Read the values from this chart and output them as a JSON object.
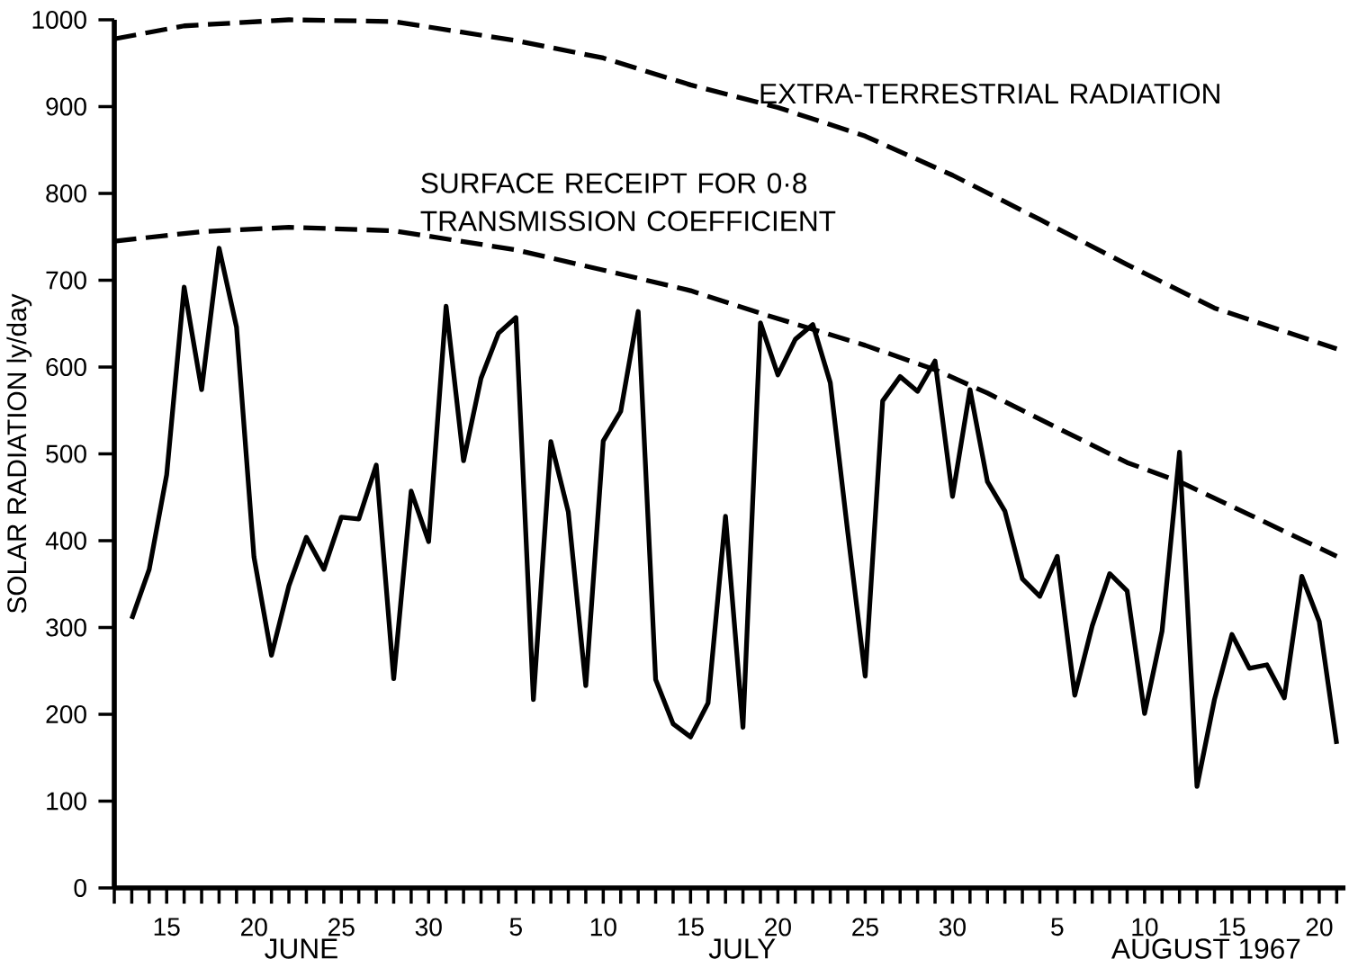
{
  "chart_data": {
    "type": "line",
    "ylabel": "SOLAR RADIATION ly/day",
    "annotations": [
      "JUNE",
      "JULY",
      "AUGUST 1967"
    ],
    "xlim": [
      "1967-06-12",
      "1967-08-21T12:00"
    ],
    "ylim": [
      0,
      1000
    ],
    "yticks": [
      0,
      100,
      200,
      300,
      400,
      500,
      600,
      700,
      800,
      900,
      1000
    ],
    "xticks": [
      {
        "value": "1967-06-15",
        "label": "15"
      },
      {
        "value": "1967-06-20",
        "label": "20"
      },
      {
        "value": "1967-06-25",
        "label": "25"
      },
      {
        "value": "1967-06-30",
        "label": "30"
      },
      {
        "value": "1967-07-05",
        "label": "5"
      },
      {
        "value": "1967-07-10",
        "label": "10"
      },
      {
        "value": "1967-07-15",
        "label": "15"
      },
      {
        "value": "1967-07-20",
        "label": "20"
      },
      {
        "value": "1967-07-25",
        "label": "25"
      },
      {
        "value": "1967-07-30",
        "label": "30"
      },
      {
        "value": "1967-08-05",
        "label": "5"
      },
      {
        "value": "1967-08-10",
        "label": "10"
      },
      {
        "value": "1967-08-15",
        "label": "15"
      },
      {
        "value": "1967-08-20",
        "label": "20"
      }
    ],
    "legend": false,
    "grid": false,
    "marker": "none",
    "series": [
      {
        "color": "#000000",
        "line_style": "solid",
        "x": [
          "1967-06-13",
          "1967-06-14",
          "1967-06-15",
          "1967-06-16",
          "1967-06-17",
          "1967-06-18",
          "1967-06-19",
          "1967-06-20",
          "1967-06-21",
          "1967-06-22",
          "1967-06-23",
          "1967-06-24",
          "1967-06-25",
          "1967-06-26",
          "1967-06-27",
          "1967-06-28",
          "1967-06-29",
          "1967-06-30",
          "1967-07-01",
          "1967-07-02",
          "1967-07-03",
          "1967-07-04",
          "1967-07-05",
          "1967-07-06",
          "1967-07-07",
          "1967-07-08",
          "1967-07-09",
          "1967-07-10",
          "1967-07-11",
          "1967-07-12",
          "1967-07-13",
          "1967-07-14",
          "1967-07-15",
          "1967-07-16",
          "1967-07-17",
          "1967-07-18",
          "1967-07-19",
          "1967-07-20",
          "1967-07-21",
          "1967-07-22",
          "1967-07-23",
          "1967-07-24",
          "1967-07-25",
          "1967-07-26",
          "1967-07-27",
          "1967-07-28",
          "1967-07-29",
          "1967-07-30",
          "1967-07-31",
          "1967-08-01",
          "1967-08-02",
          "1967-08-03",
          "1967-08-04",
          "1967-08-05",
          "1967-08-06",
          "1967-08-07",
          "1967-08-08",
          "1967-08-09",
          "1967-08-10",
          "1967-08-11",
          "1967-08-12",
          "1967-08-13",
          "1967-08-14",
          "1967-08-15",
          "1967-08-16",
          "1967-08-17",
          "1967-08-18",
          "1967-08-19",
          "1967-08-20",
          "1967-08-21"
        ],
        "values": [
          310,
          367,
          476,
          692,
          574,
          737,
          646,
          381,
          268,
          348,
          404,
          367,
          427,
          425,
          487,
          241,
          457,
          399,
          670,
          492,
          587,
          639,
          657,
          217,
          514,
          433,
          233,
          515,
          549,
          664,
          240,
          189,
          174,
          213,
          428,
          185,
          651,
          591,
          632,
          649,
          582,
          410,
          244,
          561,
          589,
          572,
          607,
          451,
          574,
          468,
          434,
          356,
          336,
          382,
          222,
          302,
          362,
          342,
          201,
          296,
          502,
          117,
          217,
          292,
          253,
          257,
          219,
          359,
          307,
          166
        ]
      },
      {
        "name": "EXTRA-TERRESTRIAL RADIATION",
        "color": "#000000",
        "line_style": "dashed",
        "x": [
          "1967-06-12",
          "1967-06-16",
          "1967-06-22",
          "1967-06-28",
          "1967-07-05",
          "1967-07-10",
          "1967-07-15",
          "1967-07-20",
          "1967-07-25",
          "1967-07-30",
          "1967-08-04",
          "1967-08-09",
          "1967-08-14",
          "1967-08-21"
        ],
        "values": [
          978,
          993,
          1000,
          998,
          976,
          956,
          925,
          899,
          866,
          821,
          770,
          718,
          668,
          621
        ]
      },
      {
        "name": "SURFACE RECEIPT FOR 0·8 TRANSMISSION COEFFICIENT",
        "color": "#000000",
        "line_style": "dashed",
        "x": [
          "1967-06-12",
          "1967-06-17",
          "1967-06-22",
          "1967-06-28",
          "1967-07-05",
          "1967-07-11",
          "1967-07-15",
          "1967-07-19",
          "1967-07-25",
          "1967-07-29",
          "1967-08-01",
          "1967-08-05",
          "1967-08-09",
          "1967-08-12",
          "1967-08-16",
          "1967-08-21"
        ],
        "values": [
          745,
          756,
          761,
          757,
          735,
          707,
          688,
          662,
          625,
          597,
          570,
          530,
          490,
          468,
          430,
          382
        ]
      }
    ]
  }
}
